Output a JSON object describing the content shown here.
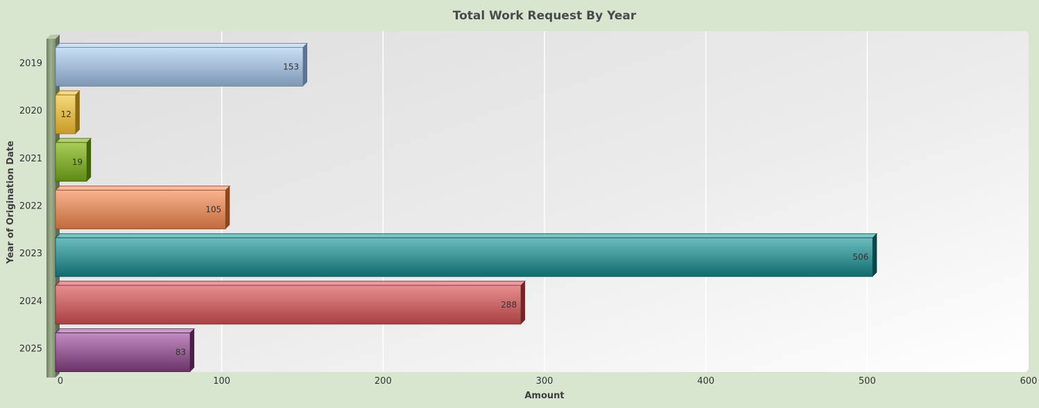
{
  "chart_data": {
    "type": "bar",
    "orientation": "horizontal",
    "title": "Total Work Request By Year",
    "xlabel": "Amount",
    "ylabel": "Year of Origination Date",
    "categories": [
      "2019",
      "2020",
      "2021",
      "2022",
      "2023",
      "2024",
      "2025"
    ],
    "values": [
      153,
      12,
      19,
      105,
      506,
      288,
      83
    ],
    "data_labels": [
      "153",
      "12",
      "19",
      "105",
      "506",
      "288",
      "83"
    ],
    "xlim": [
      0,
      600
    ],
    "xticks": [
      0,
      100,
      200,
      300,
      400,
      500,
      600
    ],
    "xtick_labels": [
      "0",
      "100",
      "200",
      "300",
      "400",
      "500",
      "600"
    ],
    "grid": true,
    "legend": "none",
    "colors": [
      [
        "#c9e0f5",
        "#7e97b4",
        "#5d7390"
      ],
      [
        "#f6d97a",
        "#c99a26",
        "#8a6a12"
      ],
      [
        "#a9cd5a",
        "#5e8a12",
        "#3f620a"
      ],
      [
        "#f7b48e",
        "#c06a3a",
        "#8c4620"
      ],
      [
        "#6cbdbd",
        "#0f6b6e",
        "#08484a"
      ],
      [
        "#e88e90",
        "#a84042",
        "#722628"
      ],
      [
        "#c28cc2",
        "#6a3367",
        "#481f46"
      ]
    ]
  }
}
